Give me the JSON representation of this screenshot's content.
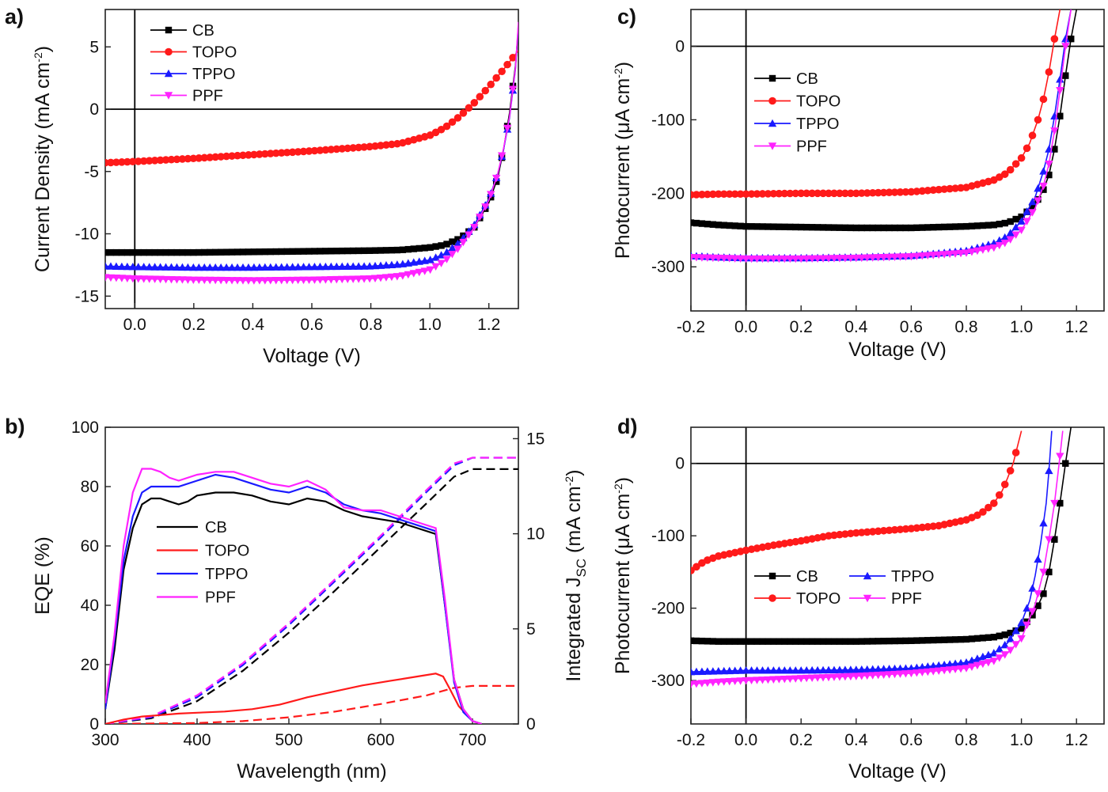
{
  "colors": {
    "CB": "#000000",
    "TOPO": "#ff1a1a",
    "TPPO": "#1a1aff",
    "PPF": "#ff22ff"
  },
  "chart_data": [
    {
      "panel": "a)",
      "type": "line",
      "xlabel": "Voltage (V)",
      "ylabel": "Current Density (mA cm⁻²)",
      "xlim": [
        -0.1,
        1.3
      ],
      "ylim": [
        -16,
        8
      ],
      "xticks": [
        0.0,
        0.2,
        0.4,
        0.6,
        0.8,
        1.0,
        1.2
      ],
      "xtick_labels": [
        "0.0",
        "0.2",
        "0.4",
        "0.6",
        "0.8",
        "1.0",
        "1.2"
      ],
      "yticks": [
        -15,
        -10,
        -5,
        0,
        5
      ],
      "ytick_labels": [
        "-15",
        "-10",
        "-5",
        "0",
        "5"
      ],
      "legend": "top-left",
      "series": [
        {
          "name": "CB",
          "marker": "square",
          "x": [
            -0.1,
            0.0,
            0.2,
            0.4,
            0.6,
            0.8,
            0.9,
            1.0,
            1.05,
            1.1,
            1.15,
            1.2,
            1.23,
            1.25,
            1.27,
            1.29,
            1.3
          ],
          "y": [
            -11.5,
            -11.5,
            -11.5,
            -11.45,
            -11.4,
            -11.35,
            -11.3,
            -11.1,
            -10.9,
            -10.4,
            -9.5,
            -7.5,
            -5.5,
            -3.2,
            -0.3,
            3.5,
            6.5
          ]
        },
        {
          "name": "TOPO",
          "marker": "circle",
          "x": [
            -0.1,
            0.0,
            0.2,
            0.4,
            0.6,
            0.8,
            0.9,
            1.0,
            1.05,
            1.1,
            1.15,
            1.2,
            1.25,
            1.3
          ],
          "y": [
            -4.3,
            -4.2,
            -3.95,
            -3.65,
            -3.35,
            -3.0,
            -2.75,
            -2.1,
            -1.5,
            -0.6,
            0.5,
            1.8,
            3.2,
            4.7
          ]
        },
        {
          "name": "TPPO",
          "marker": "triangle-up",
          "x": [
            -0.1,
            0.0,
            0.2,
            0.4,
            0.6,
            0.8,
            0.9,
            1.0,
            1.05,
            1.1,
            1.15,
            1.2,
            1.23,
            1.25,
            1.27,
            1.29,
            1.3
          ],
          "y": [
            -12.6,
            -12.65,
            -12.7,
            -12.7,
            -12.65,
            -12.6,
            -12.45,
            -12.1,
            -11.6,
            -10.7,
            -9.3,
            -7.2,
            -5.2,
            -3.2,
            -0.7,
            3.2,
            6.8
          ]
        },
        {
          "name": "PPF",
          "marker": "triangle-down",
          "x": [
            -0.1,
            0.0,
            0.2,
            0.4,
            0.6,
            0.8,
            0.9,
            1.0,
            1.05,
            1.1,
            1.15,
            1.2,
            1.23,
            1.25,
            1.27,
            1.29,
            1.3
          ],
          "y": [
            -13.5,
            -13.6,
            -13.7,
            -13.75,
            -13.7,
            -13.6,
            -13.4,
            -12.9,
            -12.2,
            -11.1,
            -9.5,
            -7.3,
            -5.2,
            -3.1,
            -0.6,
            3.3,
            7.0
          ]
        }
      ]
    },
    {
      "panel": "b)",
      "type": "line",
      "xlabel": "Wavelength (nm)",
      "ylabel": "EQE (%)",
      "y2label": "Integrated J",
      "y2label_sub": "SC",
      "y2label_unit": "(mA cm⁻²)",
      "xlim": [
        300,
        750
      ],
      "ylim": [
        0,
        100
      ],
      "y2lim": [
        0,
        15.6
      ],
      "xticks": [
        300,
        400,
        500,
        600,
        700
      ],
      "xtick_labels": [
        "300",
        "400",
        "500",
        "600",
        "700"
      ],
      "yticks": [
        0,
        20,
        40,
        60,
        80,
        100
      ],
      "ytick_labels": [
        "0",
        "20",
        "40",
        "60",
        "80",
        "100"
      ],
      "y2ticks": [
        0,
        5,
        10,
        15
      ],
      "y2tick_labels": [
        "0",
        "5",
        "10",
        "15"
      ],
      "legend": "center-left",
      "series": [
        {
          "name": "CB",
          "x": [
            300,
            310,
            320,
            330,
            340,
            350,
            360,
            370,
            380,
            390,
            400,
            420,
            440,
            460,
            480,
            500,
            520,
            540,
            560,
            580,
            600,
            620,
            640,
            660,
            670,
            680,
            690,
            700,
            710
          ],
          "y": [
            5,
            25,
            52,
            66,
            74,
            76,
            76,
            75,
            74,
            75,
            77,
            78,
            78,
            77,
            75,
            74,
            76,
            75,
            72,
            70,
            69,
            68,
            66,
            64,
            40,
            15,
            5,
            1,
            0
          ]
        },
        {
          "name": "TOPO",
          "x": [
            300,
            320,
            340,
            360,
            380,
            400,
            430,
            460,
            490,
            520,
            550,
            580,
            610,
            640,
            660,
            668,
            675,
            685,
            700,
            710
          ],
          "y": [
            0,
            1.5,
            2.5,
            3,
            3.5,
            3.8,
            4.2,
            5,
            6.5,
            9,
            11,
            13,
            14.5,
            16,
            17,
            16,
            12,
            6,
            1,
            0
          ]
        },
        {
          "name": "TPPO",
          "x": [
            300,
            310,
            320,
            330,
            340,
            350,
            360,
            380,
            400,
            420,
            440,
            460,
            480,
            500,
            520,
            540,
            560,
            580,
            600,
            620,
            640,
            660,
            670,
            680,
            690,
            700,
            710
          ],
          "y": [
            5,
            28,
            55,
            70,
            78,
            80,
            80,
            80,
            82,
            84,
            83,
            81,
            79,
            78,
            80,
            78,
            74,
            72,
            71,
            69,
            67,
            65,
            40,
            14,
            4,
            1,
            0
          ]
        },
        {
          "name": "PPF",
          "x": [
            300,
            310,
            320,
            330,
            340,
            350,
            360,
            370,
            380,
            400,
            420,
            440,
            460,
            480,
            500,
            520,
            540,
            560,
            580,
            600,
            620,
            640,
            660,
            670,
            680,
            690,
            700,
            710
          ],
          "y": [
            7,
            30,
            60,
            78,
            86,
            86,
            85,
            83,
            82,
            84,
            85,
            85,
            83,
            81,
            80,
            82,
            79,
            73,
            72,
            72,
            70,
            68,
            66,
            42,
            15,
            5,
            1,
            0
          ]
        }
      ],
      "integrated_series": [
        {
          "name": "CB",
          "x": [
            300,
            350,
            400,
            450,
            500,
            550,
            600,
            650,
            680,
            700,
            750
          ],
          "y": [
            0,
            0.3,
            1.2,
            2.8,
            4.8,
            7.0,
            9.3,
            11.6,
            13.0,
            13.4,
            13.4
          ]
        },
        {
          "name": "TOPO",
          "x": [
            300,
            400,
            450,
            500,
            550,
            600,
            650,
            680,
            700,
            750
          ],
          "y": [
            0,
            0.05,
            0.15,
            0.35,
            0.65,
            1.05,
            1.5,
            1.9,
            2.0,
            2.0
          ]
        },
        {
          "name": "TPPO",
          "x": [
            300,
            350,
            400,
            450,
            500,
            550,
            600,
            650,
            680,
            700,
            750
          ],
          "y": [
            0,
            0.35,
            1.4,
            3.1,
            5.2,
            7.5,
            9.8,
            12.2,
            13.6,
            14.0,
            14.0
          ]
        },
        {
          "name": "PPF",
          "x": [
            300,
            350,
            400,
            450,
            500,
            550,
            600,
            650,
            680,
            700,
            750
          ],
          "y": [
            0,
            0.4,
            1.5,
            3.2,
            5.3,
            7.6,
            9.9,
            12.3,
            13.7,
            14.0,
            14.0
          ]
        }
      ]
    },
    {
      "panel": "c)",
      "type": "line",
      "xlabel": "Voltage (V)",
      "ylabel": "Photocurrent (μA cm⁻²)",
      "xlim": [
        -0.2,
        1.3
      ],
      "ylim": [
        -360,
        50
      ],
      "xticks": [
        -0.2,
        0.0,
        0.2,
        0.4,
        0.6,
        0.8,
        1.0,
        1.2
      ],
      "xtick_labels": [
        "-0.2",
        "0.0",
        "0.2",
        "0.4",
        "0.6",
        "0.8",
        "1.0",
        "1.2"
      ],
      "yticks": [
        -300,
        -200,
        -100,
        0
      ],
      "ytick_labels": [
        "-300",
        "-200",
        "-100",
        "0"
      ],
      "legend": "center-left",
      "series": [
        {
          "name": "CB",
          "marker": "square",
          "x": [
            -0.2,
            -0.1,
            0.0,
            0.2,
            0.4,
            0.6,
            0.8,
            0.9,
            0.95,
            1.0,
            1.05,
            1.08,
            1.1,
            1.12,
            1.14,
            1.16,
            1.18,
            1.2
          ],
          "y": [
            -240,
            -243,
            -245,
            -246,
            -247,
            -247,
            -245,
            -243,
            -240,
            -232,
            -215,
            -195,
            -175,
            -140,
            -95,
            -40,
            10,
            50
          ]
        },
        {
          "name": "TOPO",
          "marker": "circle",
          "x": [
            -0.2,
            -0.1,
            0.0,
            0.2,
            0.4,
            0.6,
            0.8,
            0.9,
            0.95,
            1.0,
            1.03,
            1.06,
            1.08,
            1.1,
            1.12,
            1.14
          ],
          "y": [
            -202,
            -201,
            -201,
            -200,
            -200,
            -198,
            -192,
            -182,
            -172,
            -152,
            -132,
            -100,
            -72,
            -35,
            10,
            50
          ]
        },
        {
          "name": "TPPO",
          "marker": "triangle-up",
          "x": [
            -0.2,
            -0.1,
            0.0,
            0.2,
            0.4,
            0.6,
            0.8,
            0.9,
            0.95,
            1.0,
            1.05,
            1.08,
            1.1,
            1.12,
            1.14,
            1.16,
            1.18
          ],
          "y": [
            -285,
            -287,
            -288,
            -288,
            -287,
            -285,
            -278,
            -268,
            -258,
            -238,
            -205,
            -170,
            -140,
            -95,
            -45,
            10,
            50
          ]
        },
        {
          "name": "PPF",
          "marker": "triangle-down",
          "x": [
            -0.2,
            -0.1,
            0.0,
            0.2,
            0.4,
            0.6,
            0.8,
            0.9,
            0.95,
            1.0,
            1.05,
            1.08,
            1.1,
            1.12,
            1.14,
            1.16,
            1.18
          ],
          "y": [
            -287,
            -288,
            -289,
            -289,
            -288,
            -286,
            -281,
            -274,
            -266,
            -250,
            -220,
            -190,
            -160,
            -115,
            -60,
            0,
            50
          ]
        }
      ]
    },
    {
      "panel": "d)",
      "type": "line",
      "xlabel": "Voltage (V)",
      "ylabel": "Photocurrent (μA cm⁻²)",
      "xlim": [
        -0.2,
        1.3
      ],
      "ylim": [
        -360,
        50
      ],
      "xticks": [
        -0.2,
        0.0,
        0.2,
        0.4,
        0.6,
        0.8,
        1.0,
        1.2
      ],
      "xtick_labels": [
        "-0.2",
        "0.0",
        "0.2",
        "0.4",
        "0.6",
        "0.8",
        "1.0",
        "1.2"
      ],
      "yticks": [
        -300,
        -200,
        -100,
        0
      ],
      "ytick_labels": [
        "-300",
        "-200",
        "-100",
        "0"
      ],
      "legend": "center-left, two columns",
      "series": [
        {
          "name": "CB",
          "marker": "square",
          "x": [
            -0.2,
            -0.1,
            0.0,
            0.2,
            0.4,
            0.6,
            0.8,
            0.9,
            0.95,
            1.0,
            1.05,
            1.08,
            1.1,
            1.12,
            1.14,
            1.16,
            1.18
          ],
          "y": [
            -245,
            -246,
            -246,
            -246,
            -246,
            -245,
            -243,
            -240,
            -236,
            -228,
            -205,
            -180,
            -150,
            -105,
            -55,
            0,
            50
          ]
        },
        {
          "name": "TOPO",
          "marker": "circle",
          "x": [
            -0.2,
            -0.15,
            -0.1,
            0.0,
            0.1,
            0.2,
            0.3,
            0.4,
            0.5,
            0.6,
            0.7,
            0.8,
            0.85,
            0.9,
            0.93,
            0.95,
            0.97,
            0.99,
            1.0
          ],
          "y": [
            -148,
            -135,
            -128,
            -120,
            -113,
            -107,
            -100,
            -96,
            -93,
            -90,
            -86,
            -78,
            -70,
            -55,
            -38,
            -20,
            0,
            30,
            45
          ]
        },
        {
          "name": "TPPO",
          "marker": "triangle-up",
          "x": [
            -0.2,
            -0.1,
            0.0,
            0.2,
            0.4,
            0.6,
            0.8,
            0.9,
            0.95,
            1.0,
            1.03,
            1.05,
            1.07,
            1.09,
            1.1,
            1.11
          ],
          "y": [
            -288,
            -287,
            -286,
            -286,
            -285,
            -283,
            -275,
            -262,
            -248,
            -220,
            -190,
            -155,
            -110,
            -55,
            -10,
            45
          ]
        },
        {
          "name": "PPF",
          "marker": "triangle-down",
          "x": [
            -0.2,
            -0.1,
            0.0,
            0.2,
            0.4,
            0.6,
            0.8,
            0.9,
            0.95,
            1.0,
            1.05,
            1.08,
            1.1,
            1.12,
            1.14,
            1.15
          ],
          "y": [
            -305,
            -302,
            -300,
            -297,
            -294,
            -290,
            -283,
            -273,
            -262,
            -242,
            -195,
            -150,
            -105,
            -55,
            10,
            45
          ]
        }
      ]
    }
  ]
}
